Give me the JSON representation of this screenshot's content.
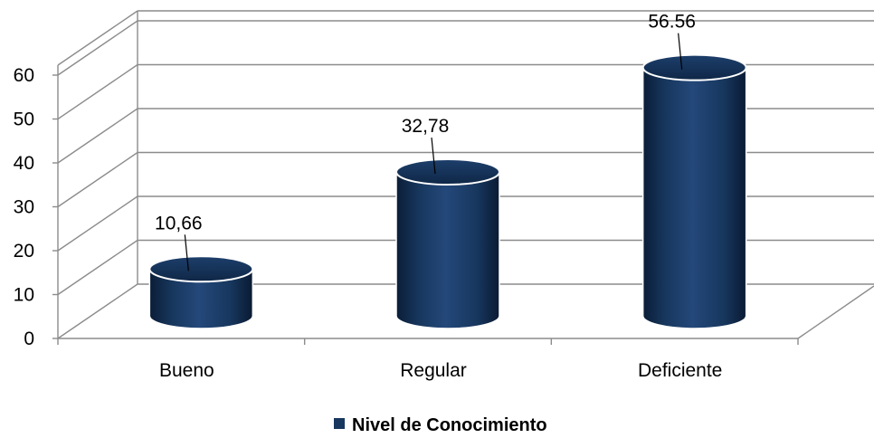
{
  "chart_data": {
    "type": "bar",
    "style": "3d-cylinder",
    "categories": [
      "Bueno",
      "Regular",
      "Deficiente"
    ],
    "series": [
      {
        "name": "Nivel de Conocimiento",
        "values": [
          10.66,
          32.78,
          56.56
        ],
        "data_labels": [
          "10,66",
          "32,78",
          "56.56"
        ],
        "color": "#17375e"
      }
    ],
    "yticks": [
      "0",
      "10",
      "20",
      "30",
      "40",
      "50",
      "60"
    ],
    "ylim": [
      0,
      60
    ],
    "grid": true,
    "legend_position": "bottom",
    "title": "",
    "xlabel": "",
    "ylabel": ""
  }
}
